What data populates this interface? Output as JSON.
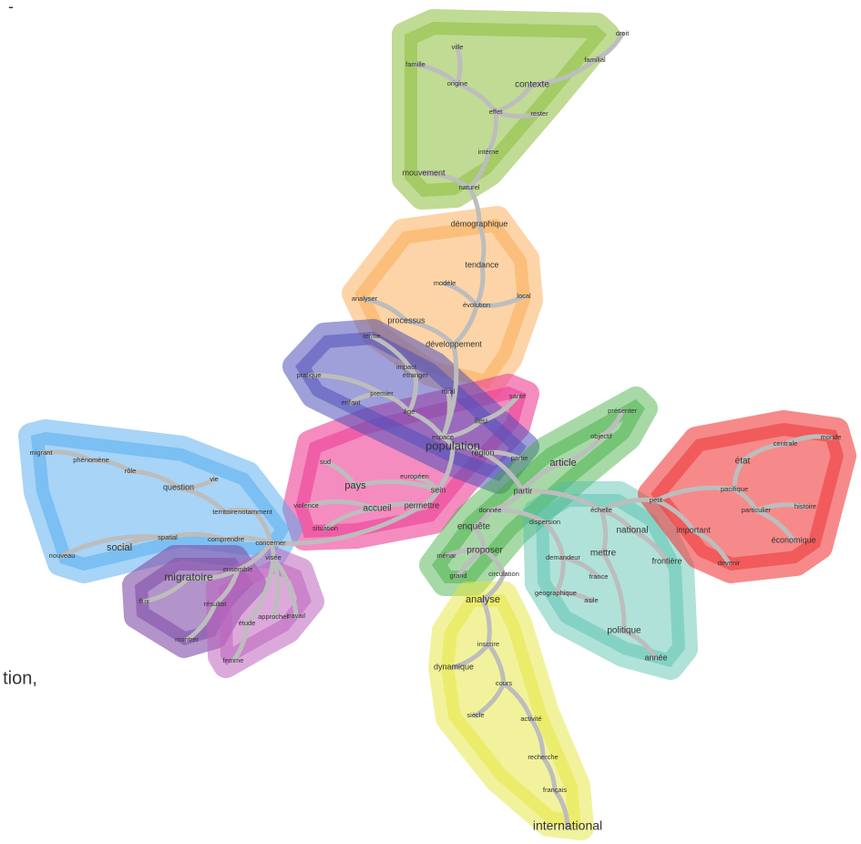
{
  "fragments": [
    "-",
    "tion,"
  ],
  "nodes": [
    {
      "label": "droit"
    },
    {
      "label": "familial"
    },
    {
      "label": "ville"
    },
    {
      "label": "famille"
    },
    {
      "label": "origine"
    },
    {
      "label": "contexte"
    },
    {
      "label": "effet"
    },
    {
      "label": "rester"
    },
    {
      "label": "intérne"
    },
    {
      "label": "mouvement"
    },
    {
      "label": "naturel"
    },
    {
      "label": "démographique"
    },
    {
      "label": "tendance"
    },
    {
      "label": "modèle"
    },
    {
      "label": "local"
    },
    {
      "label": "analyser"
    },
    {
      "label": "évolution"
    },
    {
      "label": "processus"
    },
    {
      "label": "développement"
    },
    {
      "label": "terme"
    },
    {
      "label": "pratique"
    },
    {
      "label": "impact"
    },
    {
      "label": "étranger"
    },
    {
      "label": "premier"
    },
    {
      "label": "enfant"
    },
    {
      "label": "rural"
    },
    {
      "label": "âge"
    },
    {
      "label": "santé"
    },
    {
      "label": "lieu"
    },
    {
      "label": "espace"
    },
    {
      "label": "population"
    },
    {
      "label": "sud"
    },
    {
      "label": "pays"
    },
    {
      "label": "européen"
    },
    {
      "label": "sein"
    },
    {
      "label": "région"
    },
    {
      "label": "partie"
    },
    {
      "label": "violence"
    },
    {
      "label": "accueil"
    },
    {
      "label": "permettre"
    },
    {
      "label": "situation"
    },
    {
      "label": "article"
    },
    {
      "label": "présenter"
    },
    {
      "label": "objectif"
    },
    {
      "label": "partir"
    },
    {
      "label": "donnée"
    },
    {
      "label": "dispersion"
    },
    {
      "label": "échelle"
    },
    {
      "label": "national"
    },
    {
      "label": "enquête"
    },
    {
      "label": "proposer"
    },
    {
      "label": "mettre"
    },
    {
      "label": "frontière"
    },
    {
      "label": "demandeur"
    },
    {
      "label": "ménar"
    },
    {
      "label": "grand"
    },
    {
      "label": "circulation"
    },
    {
      "label": "france"
    },
    {
      "label": "géographique"
    },
    {
      "label": "asile"
    },
    {
      "label": "politique"
    },
    {
      "label": "année"
    },
    {
      "label": "centrale"
    },
    {
      "label": "monde"
    },
    {
      "label": "état"
    },
    {
      "label": "pacifique"
    },
    {
      "label": "petit"
    },
    {
      "label": "particulier"
    },
    {
      "label": "histoire"
    },
    {
      "label": "important"
    },
    {
      "label": "économique"
    },
    {
      "label": "devenir"
    },
    {
      "label": "analyse"
    },
    {
      "label": "inscrire"
    },
    {
      "label": "dynamique"
    },
    {
      "label": "cours"
    },
    {
      "label": "siècle"
    },
    {
      "label": "activité"
    },
    {
      "label": "recherche"
    },
    {
      "label": "français"
    },
    {
      "label": "international"
    },
    {
      "label": "migrant"
    },
    {
      "label": "phénomène"
    },
    {
      "label": "rôle"
    },
    {
      "label": "vie"
    },
    {
      "label": "question"
    },
    {
      "label": "territoire"
    },
    {
      "label": "notamment"
    },
    {
      "label": "social"
    },
    {
      "label": "spatial"
    },
    {
      "label": "comprendre"
    },
    {
      "label": "concerner"
    },
    {
      "label": "nouveau"
    },
    {
      "label": "migratoire"
    },
    {
      "label": "ensemble"
    },
    {
      "label": "flux"
    },
    {
      "label": "résultat"
    },
    {
      "label": "montrer"
    },
    {
      "label": "visée"
    },
    {
      "label": "approcher"
    },
    {
      "label": "travail"
    },
    {
      "label": "étude"
    },
    {
      "label": "femme"
    }
  ]
}
